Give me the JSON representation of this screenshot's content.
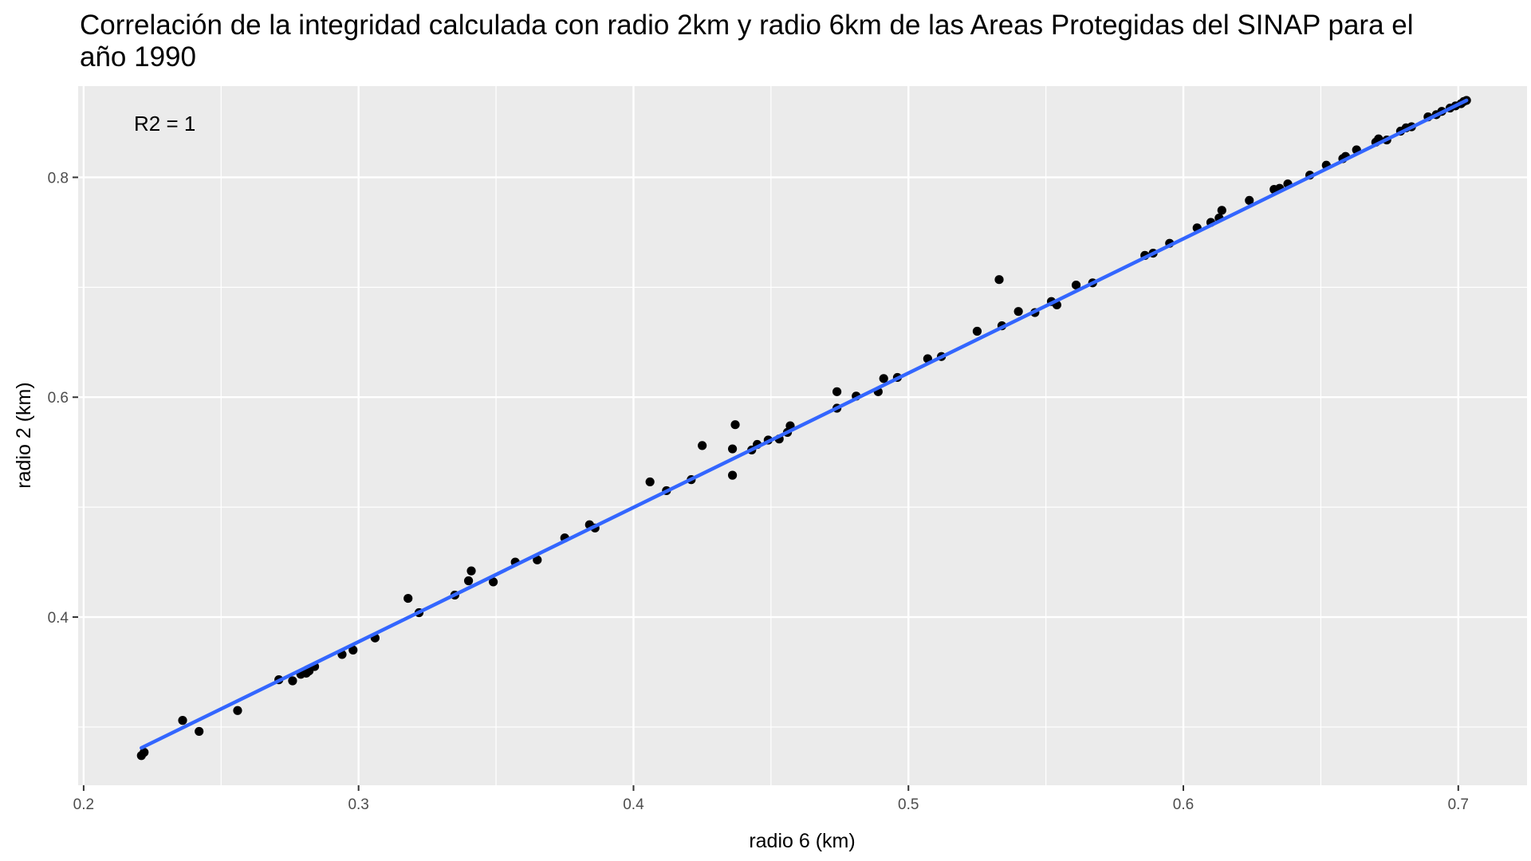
{
  "chart_data": {
    "type": "scatter",
    "title": "Correlación de la integridad calculada con radio 2km y radio 6km de las Areas Protegidas del SINAP para el año 1990",
    "xlabel": "radio 6 (km)",
    "ylabel": "radio 2 (km)",
    "xlim": [
      0.198,
      0.725
    ],
    "ylim": [
      0.247,
      0.883
    ],
    "x_ticks": [
      0.2,
      0.3,
      0.4,
      0.5,
      0.6,
      0.7
    ],
    "x_tick_labels": [
      "0.2",
      "0.3",
      "0.4",
      "0.5",
      "0.6",
      "0.7"
    ],
    "y_ticks": [
      0.4,
      0.6,
      0.8
    ],
    "y_tick_labels": [
      "0.4",
      "0.6",
      "0.8"
    ],
    "grid": true,
    "annotation": "R2 = 1",
    "fit_line": {
      "x": [
        0.221,
        0.703
      ],
      "y": [
        0.281,
        0.87
      ],
      "color": "#3366FF"
    },
    "points_color": "#000000",
    "background": "#EBEBEB",
    "points": [
      [
        0.221,
        0.274
      ],
      [
        0.222,
        0.277
      ],
      [
        0.236,
        0.306
      ],
      [
        0.242,
        0.296
      ],
      [
        0.256,
        0.315
      ],
      [
        0.271,
        0.343
      ],
      [
        0.276,
        0.342
      ],
      [
        0.279,
        0.348
      ],
      [
        0.281,
        0.349
      ],
      [
        0.282,
        0.351
      ],
      [
        0.284,
        0.355
      ],
      [
        0.294,
        0.366
      ],
      [
        0.298,
        0.37
      ],
      [
        0.306,
        0.381
      ],
      [
        0.318,
        0.417
      ],
      [
        0.322,
        0.404
      ],
      [
        0.335,
        0.42
      ],
      [
        0.34,
        0.433
      ],
      [
        0.341,
        0.442
      ],
      [
        0.349,
        0.432
      ],
      [
        0.357,
        0.45
      ],
      [
        0.365,
        0.452
      ],
      [
        0.375,
        0.472
      ],
      [
        0.384,
        0.484
      ],
      [
        0.386,
        0.481
      ],
      [
        0.406,
        0.523
      ],
      [
        0.412,
        0.515
      ],
      [
        0.421,
        0.525
      ],
      [
        0.425,
        0.556
      ],
      [
        0.436,
        0.529
      ],
      [
        0.436,
        0.553
      ],
      [
        0.437,
        0.575
      ],
      [
        0.443,
        0.552
      ],
      [
        0.445,
        0.557
      ],
      [
        0.449,
        0.561
      ],
      [
        0.453,
        0.562
      ],
      [
        0.456,
        0.568
      ],
      [
        0.457,
        0.574
      ],
      [
        0.474,
        0.59
      ],
      [
        0.474,
        0.605
      ],
      [
        0.481,
        0.601
      ],
      [
        0.489,
        0.605
      ],
      [
        0.491,
        0.617
      ],
      [
        0.496,
        0.618
      ],
      [
        0.507,
        0.635
      ],
      [
        0.512,
        0.637
      ],
      [
        0.525,
        0.66
      ],
      [
        0.533,
        0.707
      ],
      [
        0.534,
        0.665
      ],
      [
        0.54,
        0.678
      ],
      [
        0.546,
        0.677
      ],
      [
        0.552,
        0.687
      ],
      [
        0.554,
        0.684
      ],
      [
        0.561,
        0.702
      ],
      [
        0.567,
        0.704
      ],
      [
        0.586,
        0.729
      ],
      [
        0.589,
        0.731
      ],
      [
        0.595,
        0.74
      ],
      [
        0.605,
        0.754
      ],
      [
        0.61,
        0.759
      ],
      [
        0.613,
        0.763
      ],
      [
        0.614,
        0.77
      ],
      [
        0.624,
        0.779
      ],
      [
        0.633,
        0.789
      ],
      [
        0.635,
        0.79
      ],
      [
        0.638,
        0.794
      ],
      [
        0.646,
        0.802
      ],
      [
        0.652,
        0.811
      ],
      [
        0.658,
        0.817
      ],
      [
        0.659,
        0.819
      ],
      [
        0.663,
        0.825
      ],
      [
        0.67,
        0.832
      ],
      [
        0.671,
        0.835
      ],
      [
        0.674,
        0.834
      ],
      [
        0.679,
        0.842
      ],
      [
        0.681,
        0.845
      ],
      [
        0.683,
        0.846
      ],
      [
        0.689,
        0.855
      ],
      [
        0.692,
        0.857
      ],
      [
        0.694,
        0.86
      ],
      [
        0.697,
        0.863
      ],
      [
        0.699,
        0.865
      ],
      [
        0.701,
        0.867
      ],
      [
        0.702,
        0.869
      ],
      [
        0.703,
        0.87
      ]
    ]
  }
}
